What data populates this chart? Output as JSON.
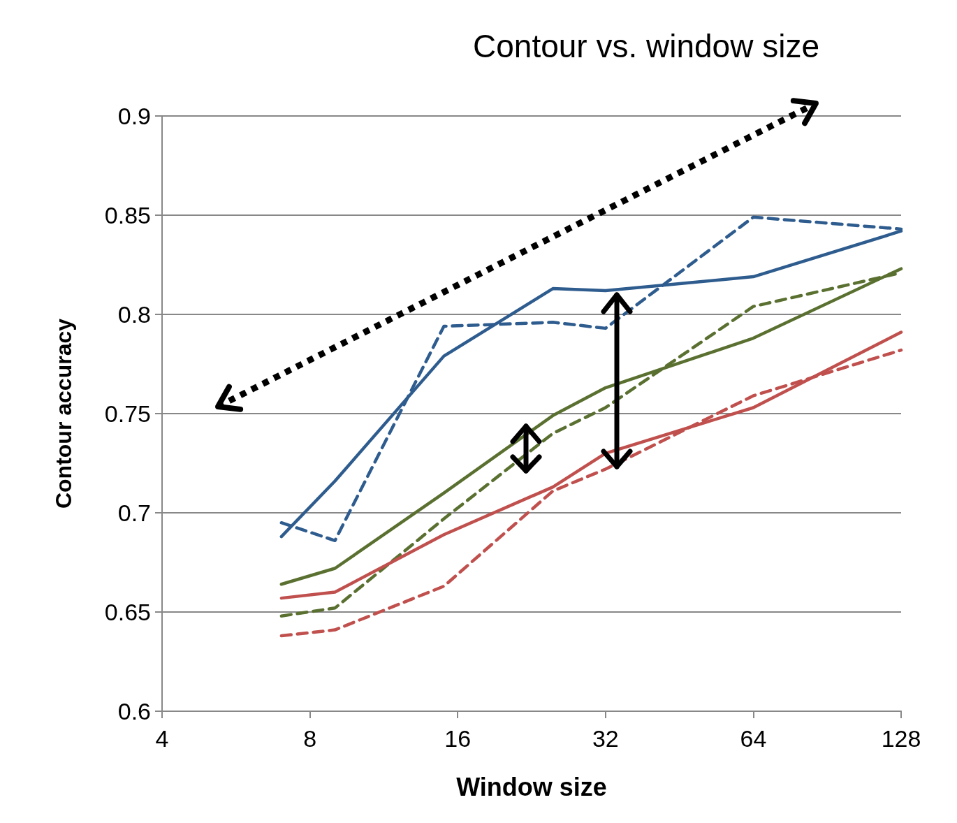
{
  "chart_data": {
    "type": "line",
    "title": "Contour vs. window size",
    "xlabel": "Window size",
    "ylabel": "Contour accuracy",
    "x": [
      7,
      9,
      15,
      25,
      32,
      64,
      128
    ],
    "xlim": [
      4,
      128
    ],
    "xticks": [
      4,
      8,
      16,
      32,
      64,
      128
    ],
    "log": "x",
    "ylim": [
      0.6,
      0.9
    ],
    "yticks": [
      0.6,
      0.65,
      0.7,
      0.75,
      0.8,
      0.85,
      0.9
    ],
    "grid": "y",
    "marker": "none",
    "series": [
      {
        "color": "#2e5c8e",
        "line_style": "solid",
        "values": [
          0.688,
          0.716,
          0.779,
          0.813,
          0.812,
          0.819,
          0.842
        ]
      },
      {
        "color": "#2e5c8e",
        "line_style": "dashed",
        "values": [
          0.695,
          0.686,
          0.794,
          0.796,
          0.793,
          0.849,
          0.843
        ]
      },
      {
        "color": "#5a7030",
        "line_style": "solid",
        "values": [
          0.664,
          0.672,
          0.71,
          0.749,
          0.763,
          0.788,
          0.823
        ]
      },
      {
        "color": "#5a7030",
        "line_style": "dashed",
        "values": [
          0.648,
          0.652,
          0.697,
          0.74,
          0.753,
          0.804,
          0.821
        ]
      },
      {
        "color": "#c0504d",
        "line_style": "solid",
        "values": [
          0.657,
          0.66,
          0.689,
          0.713,
          0.73,
          0.753,
          0.791
        ]
      },
      {
        "color": "#c0504d",
        "line_style": "dashed",
        "values": [
          0.638,
          0.641,
          0.663,
          0.711,
          0.722,
          0.759,
          0.782
        ]
      }
    ]
  }
}
